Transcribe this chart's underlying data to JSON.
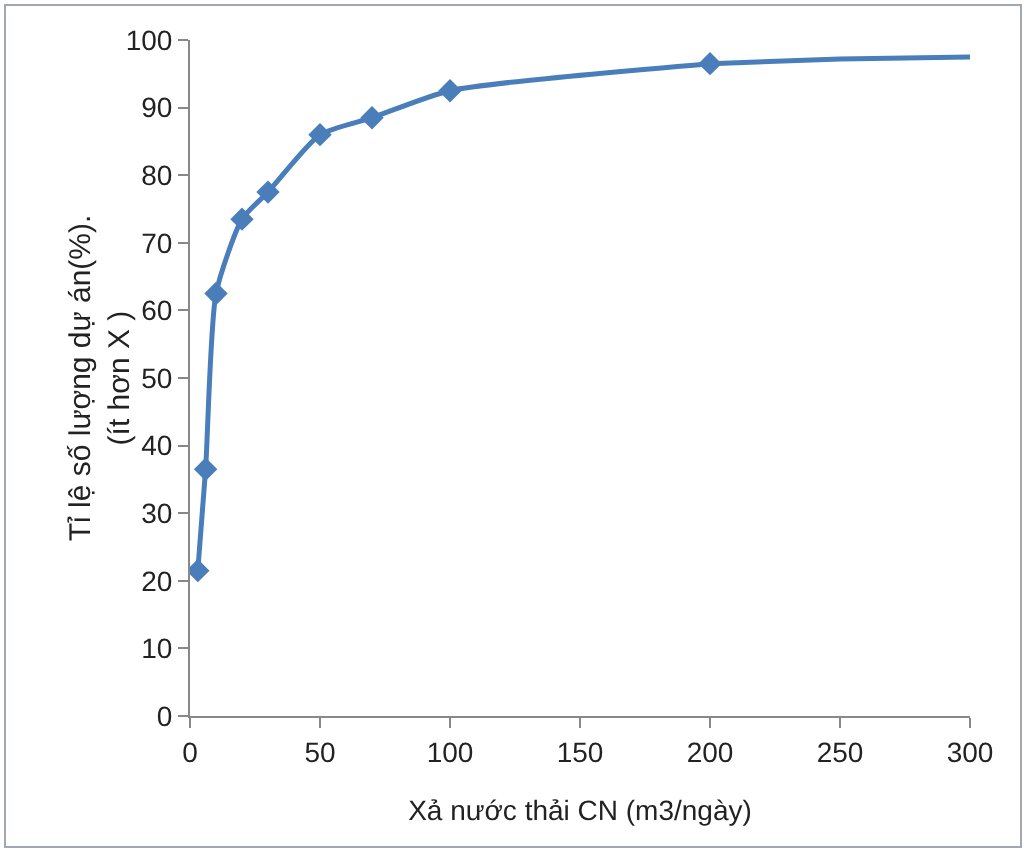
{
  "chart_data": {
    "type": "line",
    "xlabel": "Xả nước thải CN (m3/ngày)",
    "ylabel": "Tỉ lệ số lượng dự án(%).\n(ít hơn X )",
    "xlim": [
      0,
      300
    ],
    "xticks": [
      0,
      50,
      100,
      150,
      200,
      250,
      300
    ],
    "ylim": [
      0,
      100
    ],
    "yticks": [
      0,
      10,
      20,
      30,
      40,
      50,
      60,
      70,
      80,
      90,
      100
    ],
    "grid": false,
    "line_style": "solid",
    "series": [
      {
        "color": "#4a7ebb",
        "marker": "diamond",
        "x": [
          3,
          6,
          10,
          20,
          30,
          50,
          70,
          100,
          200
        ],
        "values": [
          21.5,
          36.5,
          62.5,
          73.5,
          77.5,
          86,
          88.5,
          92.5,
          96.5
        ]
      },
      {
        "color": "#4a7ebb",
        "marker": "none",
        "x": [
          200,
          250,
          300
        ],
        "values": [
          96.5,
          97.2,
          97.5
        ]
      }
    ]
  }
}
